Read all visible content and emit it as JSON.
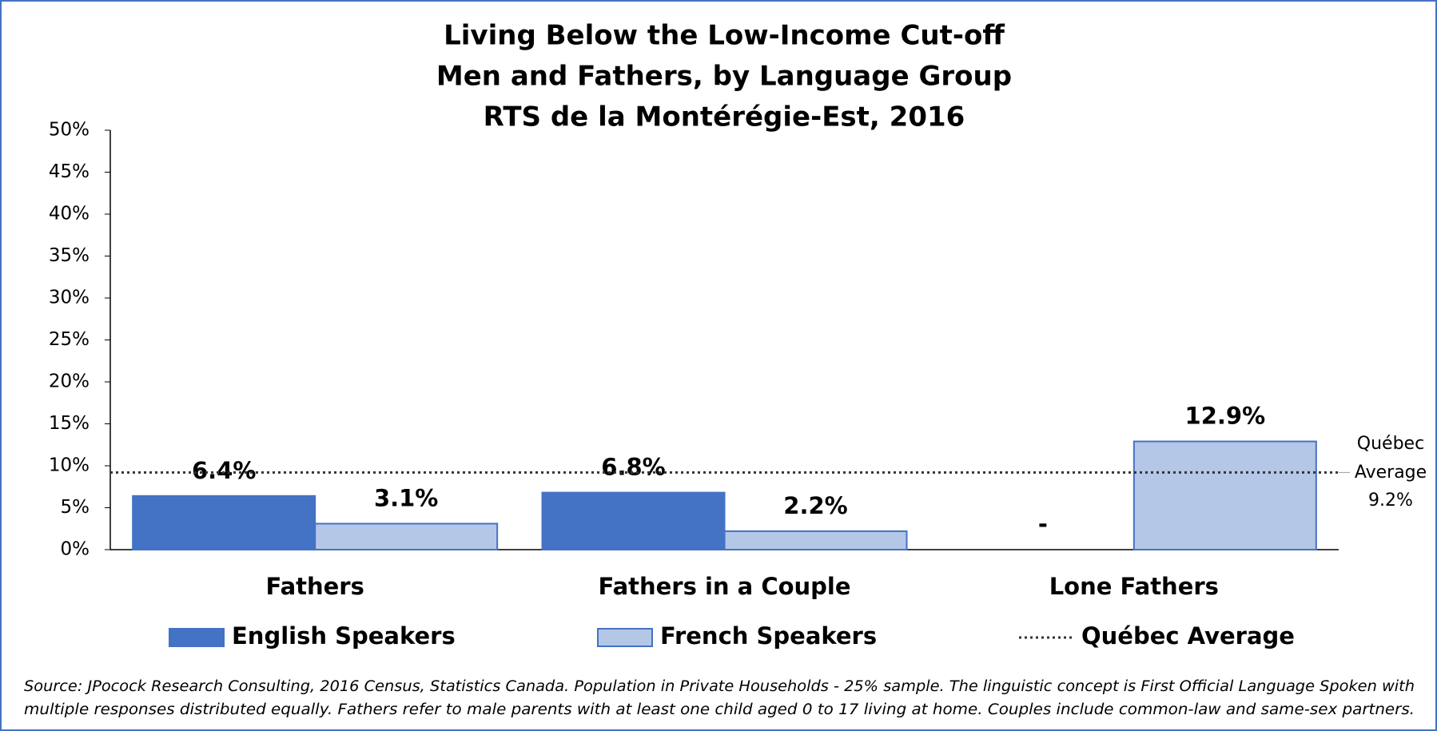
{
  "chart_data": {
    "type": "bar",
    "title": [
      "Living Below the Low-Income Cut-off",
      "Men and Fathers, by Language Group",
      "RTS de la Montérégie-Est, 2016"
    ],
    "categories": [
      "Fathers",
      "Fathers in a Couple",
      "Lone Fathers"
    ],
    "series": [
      {
        "name": "English Speakers",
        "color": "#4472c4",
        "values": [
          6.4,
          6.8,
          null
        ],
        "value_labels": [
          "6.4%",
          "6.8%",
          "-"
        ]
      },
      {
        "name": "French Speakers",
        "color": "#b4c7e7",
        "values": [
          3.1,
          2.2,
          12.9
        ],
        "value_labels": [
          "3.1%",
          "2.2%",
          "12.9%"
        ]
      }
    ],
    "reference_line": {
      "name": "Québec Average",
      "value": 9.2,
      "value_label": "9.2%",
      "color": "#333333",
      "style": "dotted"
    },
    "ylim": [
      0,
      50
    ],
    "yticks": [
      {
        "value": 0,
        "label": "0%"
      },
      {
        "value": 5,
        "label": "5%"
      },
      {
        "value": 10,
        "label": "10%"
      },
      {
        "value": 15,
        "label": "15%"
      },
      {
        "value": 20,
        "label": "20%"
      },
      {
        "value": 25,
        "label": "25%"
      },
      {
        "value": 30,
        "label": "30%"
      },
      {
        "value": 35,
        "label": "35%"
      },
      {
        "value": 40,
        "label": "40%"
      },
      {
        "value": 45,
        "label": "45%"
      },
      {
        "value": 50,
        "label": "50%"
      }
    ],
    "grid": false,
    "legend": "bottom",
    "source": [
      "Source: JPocock Research Consulting, 2016 Census, Statistics Canada. Population in Private Households - 25% sample. The linguistic concept is First Official Language Spoken with",
      "multiple responses distributed equally. Fathers refer to male parents with at least one child aged 0 to 17 living at home. Couples include common-law and same-sex partners."
    ]
  }
}
